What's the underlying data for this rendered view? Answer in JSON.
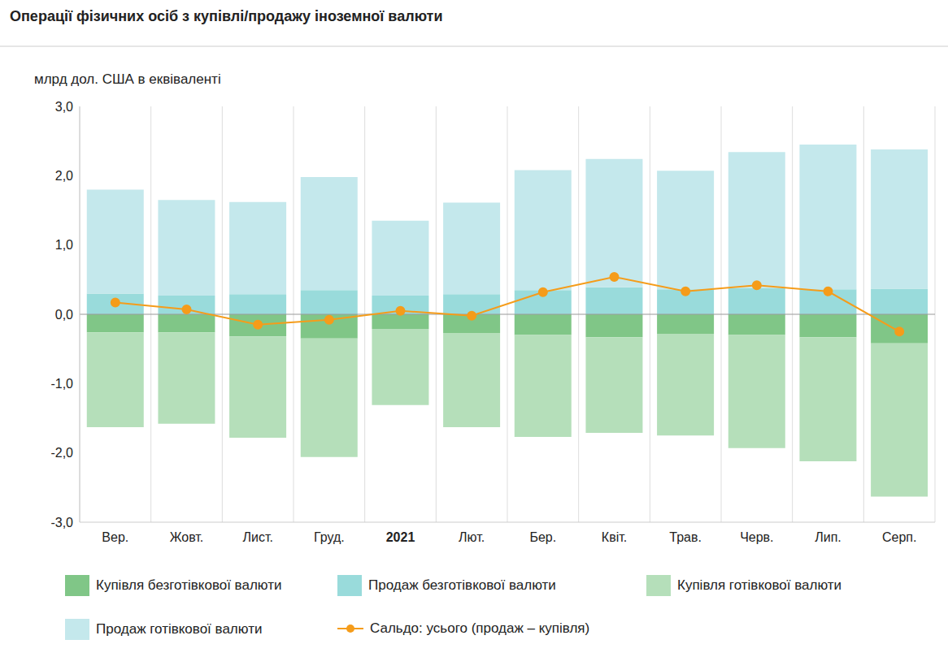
{
  "chart_data": {
    "type": "bar",
    "title": "Операції фізичних осіб з купівлі/продажу іноземної валюти",
    "y_label": "млрд дол. США в еквіваленті",
    "categories": [
      "Вер.",
      "Жовт.",
      "Лист.",
      "Груд.",
      "2021",
      "Лют.",
      "Бер.",
      "Квіт.",
      "Трав.",
      "Черв.",
      "Лип.",
      "Серп."
    ],
    "stacked": true,
    "grid": true,
    "legend": "bottom",
    "ylim": [
      -3,
      3
    ],
    "yticks": [
      {
        "value": -3,
        "label": "-3,0"
      },
      {
        "value": -2,
        "label": "-2,0"
      },
      {
        "value": -1,
        "label": "-1,0"
      },
      {
        "value": 0,
        "label": "0,0"
      },
      {
        "value": 1,
        "label": "1,0"
      },
      {
        "value": 2,
        "label": "2,0"
      },
      {
        "value": 3,
        "label": "3,0"
      }
    ],
    "series": [
      {
        "name": "Купівля безготівкової валюти",
        "type": "bar",
        "color": "#80c687",
        "values": [
          -0.26,
          -0.26,
          -0.32,
          -0.35,
          -0.21,
          -0.27,
          -0.3,
          -0.33,
          -0.28,
          -0.3,
          -0.33,
          -0.42
        ]
      },
      {
        "name": "Продаж безготівкової валюти",
        "type": "bar",
        "color": "#99dbdb",
        "values": [
          0.3,
          0.27,
          0.29,
          0.35,
          0.27,
          0.29,
          0.35,
          0.39,
          0.36,
          0.38,
          0.36,
          0.37
        ]
      },
      {
        "name": "Купівля готівкової валюти",
        "type": "bar",
        "color": "#b5dfba",
        "values": [
          -1.37,
          -1.32,
          -1.46,
          -1.71,
          -1.1,
          -1.36,
          -1.47,
          -1.38,
          -1.47,
          -1.63,
          -1.79,
          -2.21
        ]
      },
      {
        "name": "Продаж готівкової валюти",
        "type": "bar",
        "color": "#c4e8ec",
        "values": [
          1.5,
          1.38,
          1.33,
          1.63,
          1.08,
          1.32,
          1.73,
          1.85,
          1.71,
          1.96,
          2.09,
          2.01
        ]
      },
      {
        "name": "Сальдо: усього (продаж – купівля)",
        "type": "line",
        "color": "#f59c1a",
        "marker": "circle",
        "values": [
          0.17,
          0.07,
          -0.15,
          -0.08,
          0.05,
          -0.02,
          0.32,
          0.54,
          0.33,
          0.42,
          0.33,
          -0.25
        ]
      }
    ]
  }
}
